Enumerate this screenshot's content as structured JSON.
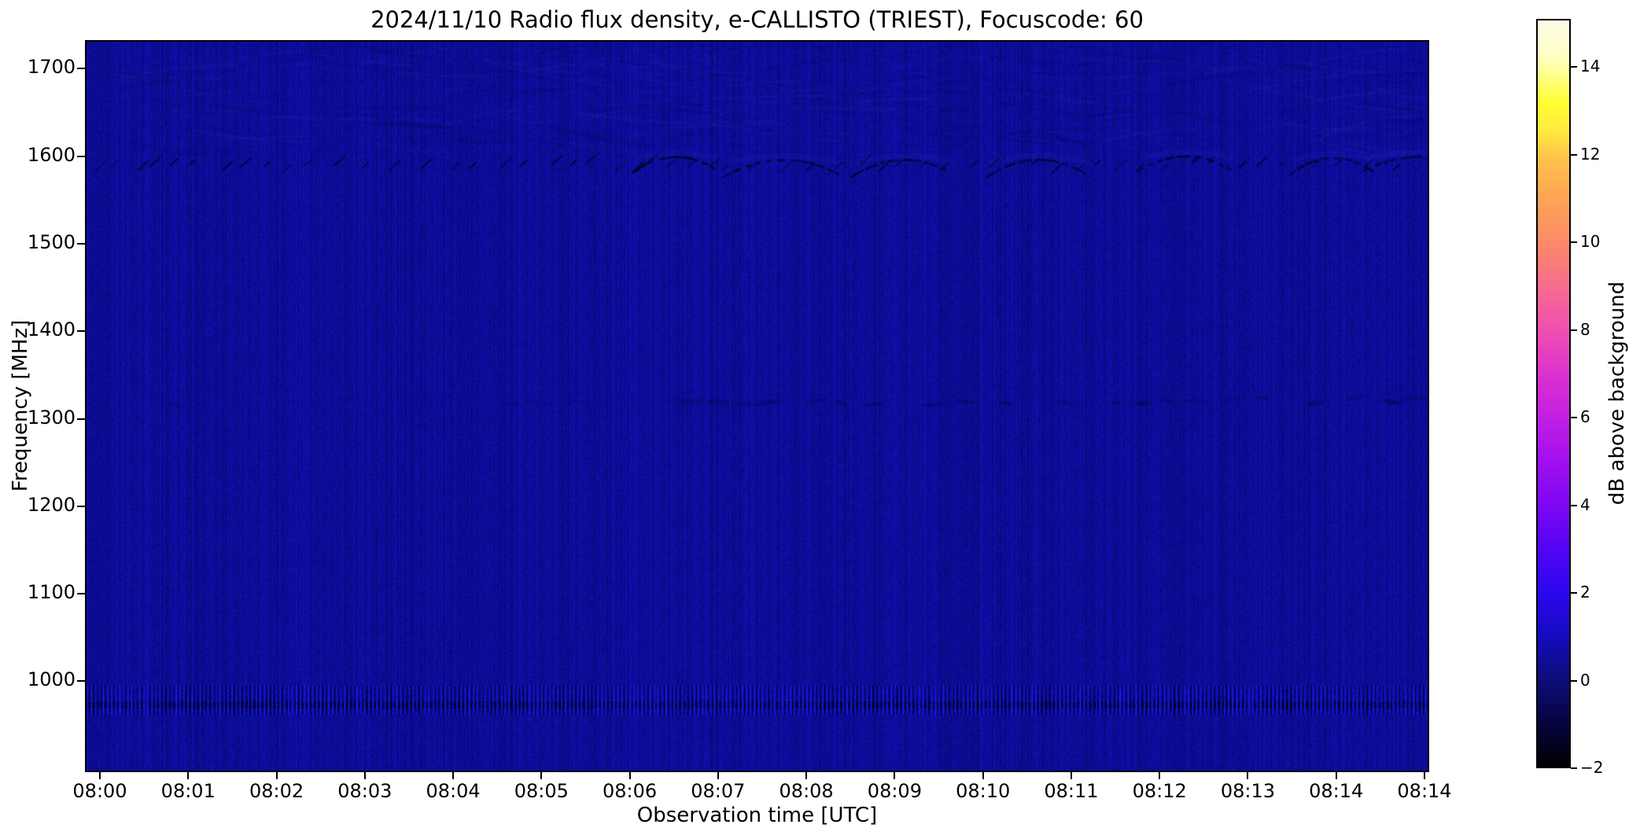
{
  "figure": {
    "background": "#ffffff",
    "text_color": "#000000"
  },
  "chart_data": {
    "type": "heatmap",
    "title": "2024/11/10  Radio flux density, e-CALLISTO (TRIEST), Focuscode: 60",
    "xlabel": "Observation time [UTC]",
    "ylabel": "Frequency [MHz]",
    "x_tick_labels": [
      "08:00",
      "08:01",
      "08:02",
      "08:03",
      "08:04",
      "08:05",
      "08:06",
      "08:07",
      "08:08",
      "08:09",
      "08:10",
      "08:11",
      "08:12",
      "08:13",
      "08:14",
      "08:14"
    ],
    "y_tick_labels": [
      "1700",
      "1600",
      "1500",
      "1400",
      "1300",
      "1200",
      "1100",
      "1000"
    ],
    "y_tick_values": [
      1700,
      1600,
      1500,
      1400,
      1300,
      1200,
      1100,
      1000
    ],
    "ylim_mhz": [
      898,
      1731
    ],
    "grid": false,
    "legend": "none",
    "colorbar": {
      "label": "dB above background",
      "tick_labels": [
        "14",
        "12",
        "10",
        "8",
        "6",
        "4",
        "2",
        "0",
        "−2"
      ],
      "tick_values": [
        14,
        12,
        10,
        8,
        6,
        4,
        2,
        0,
        -2
      ],
      "vmin": -2,
      "vmax": 15.1,
      "colormap": "gnuplot2",
      "gradient_stops": [
        {
          "v": 15.1,
          "color": "#fcfce8"
        },
        {
          "v": 14.3,
          "color": "#ffffc4"
        },
        {
          "v": 14.0,
          "color": "#ffffa2"
        },
        {
          "v": 13.2,
          "color": "#ffff33"
        },
        {
          "v": 12.5,
          "color": "#ffe73e"
        },
        {
          "v": 12.0,
          "color": "#fec44a"
        },
        {
          "v": 11.0,
          "color": "#fda455"
        },
        {
          "v": 10.0,
          "color": "#fb8a68"
        },
        {
          "v": 9.0,
          "color": "#f76c8d"
        },
        {
          "v": 8.0,
          "color": "#ef4fb2"
        },
        {
          "v": 7.0,
          "color": "#dc32cf"
        },
        {
          "v": 6.0,
          "color": "#c21fe3"
        },
        {
          "v": 5.0,
          "color": "#a110ef"
        },
        {
          "v": 4.0,
          "color": "#7d07f3"
        },
        {
          "v": 3.0,
          "color": "#5404f5"
        },
        {
          "v": 2.0,
          "color": "#2d07ef"
        },
        {
          "v": 1.0,
          "color": "#150bc0"
        },
        {
          "v": 0.0,
          "color": "#0d0d79"
        },
        {
          "v": -1.0,
          "color": "#060440"
        },
        {
          "v": -2.0,
          "color": "#000000"
        }
      ]
    },
    "background_level_db": 0,
    "features": [
      {
        "kind": "rfi-dash-row",
        "freq_mhz": 1597,
        "time_frac_range": [
          0.0,
          1.0
        ],
        "description": "Row of short dark diagonal dashes (below-background interference) near 1600 MHz across the whole recording"
      },
      {
        "kind": "rfi-arcs",
        "freq_mhz": 1592,
        "arc_centers_time_frac": [
          0.44,
          0.52,
          0.61,
          0.71,
          0.82,
          0.93,
          0.995
        ],
        "description": "Clusters of dark curved arc segments near 1600 MHz, strongest between 08:07 and 08:14"
      },
      {
        "kind": "rfi-faint-row",
        "freq_mhz": 1320,
        "time_frac_range": [
          0.45,
          1.0
        ],
        "description": "Very faint dark smudges near 1320 MHz, mostly in the second half"
      },
      {
        "kind": "striped-band",
        "freq_range_mhz": [
          963,
          995
        ],
        "time_frac_range": [
          0.0,
          1.0
        ],
        "description": "High-contrast vertical striping band (channel ripple) near 965–995 MHz across the whole recording"
      },
      {
        "kind": "diagonal-ripples",
        "freq_range_mhz": [
          1615,
          1728
        ],
        "time_frac_range": [
          0.0,
          1.0
        ],
        "description": "Faint diagonal ripple texture in the top band of the spectrogram"
      }
    ],
    "render": {
      "base_color_rgb": [
        10,
        10,
        150
      ],
      "dark_feature_color": "#000028",
      "bright_stripe_color": "#2525c8",
      "noise_seed": 1234567
    }
  }
}
